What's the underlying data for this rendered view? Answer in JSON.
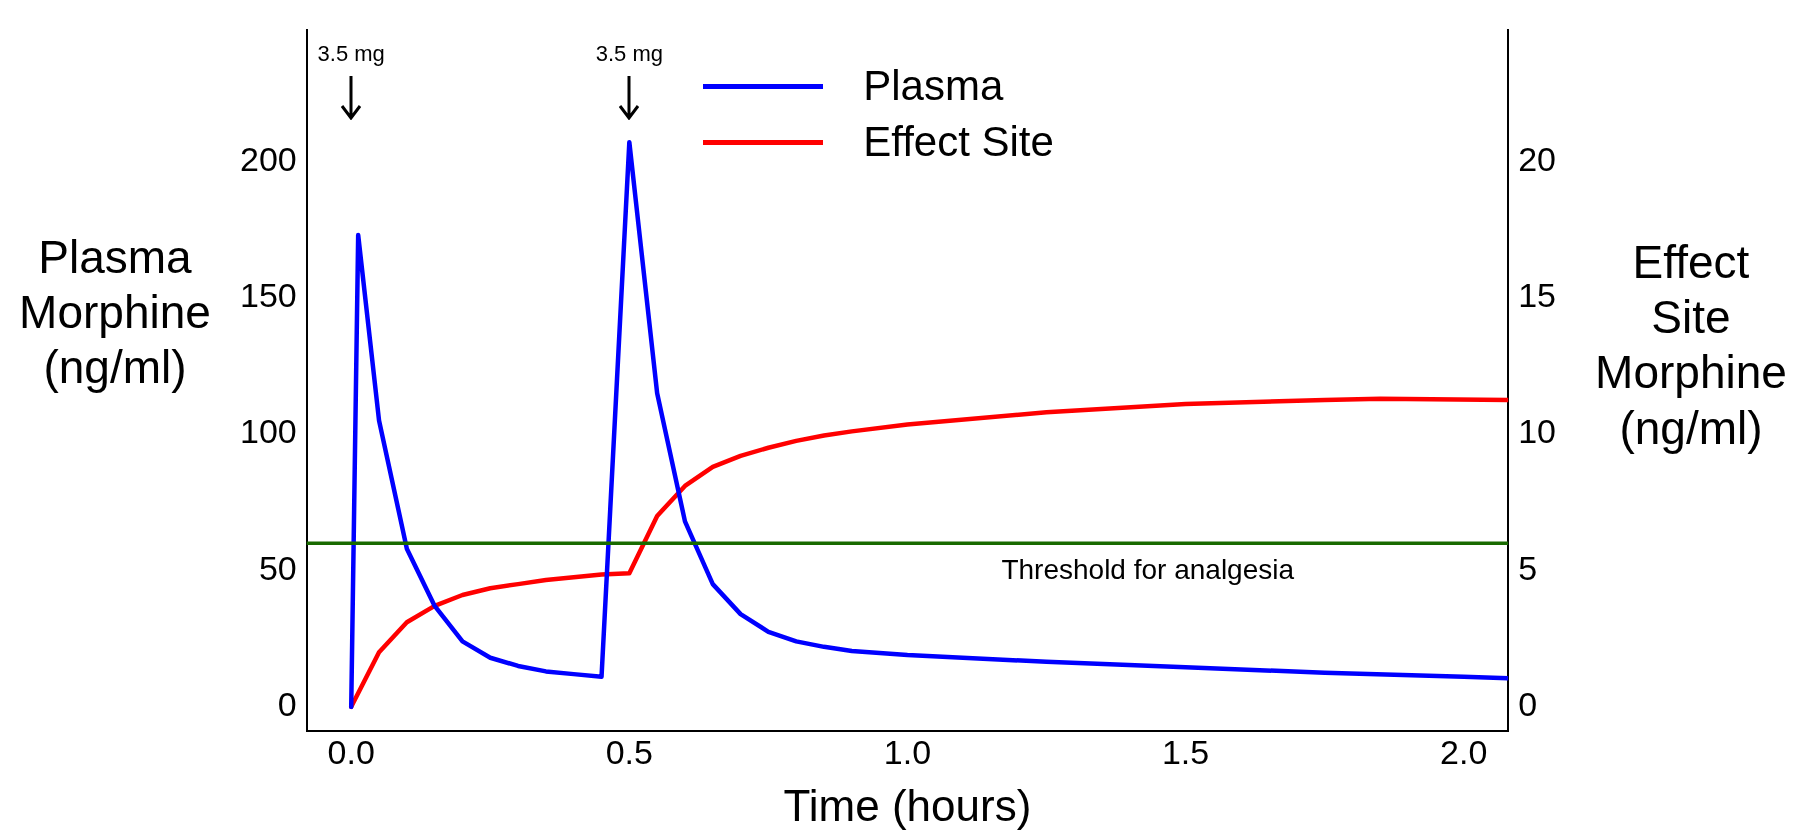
{
  "chart_data": {
    "type": "line",
    "xlabel": "Time (hours)",
    "ylabel": "Plasma Morphine (ng/ml)",
    "y2label": "Effect Site Morphine (ng/ml)",
    "annotations": [
      {
        "text": "3.5 mg",
        "x": 0
      },
      {
        "text": "3.5 mg",
        "x": 0.5
      }
    ],
    "xlim": [
      -0.08,
      2.08
    ],
    "xticks": [
      {
        "value": 0,
        "label": "0.0"
      },
      {
        "value": 0.5,
        "label": "0.5"
      },
      {
        "value": 1,
        "label": "1.0"
      },
      {
        "value": 1.5,
        "label": "1.5"
      },
      {
        "value": 2,
        "label": "2.0"
      }
    ],
    "ylim": [
      -9,
      248
    ],
    "yticks": [
      0,
      50,
      100,
      150,
      200
    ],
    "y2lim": [
      -0.9,
      24.8
    ],
    "y2ticks": [
      0,
      5,
      10,
      15,
      20
    ],
    "legend": "top",
    "marker": "none",
    "line_style": "solid",
    "ref_lines": [
      {
        "axis": "y",
        "value": 60,
        "label": "Threshold for analgesia",
        "color": "#186a00"
      }
    ],
    "series": [
      {
        "name": "Plasma",
        "color": "#0000ff",
        "x": [
          0,
          0.0125,
          0.05,
          0.1,
          0.15,
          0.2,
          0.25,
          0.3,
          0.35,
          0.4,
          0.45,
          0.5,
          0.55,
          0.6,
          0.65,
          0.7,
          0.75,
          0.8,
          0.85,
          0.9,
          1.0,
          1.25,
          1.5,
          1.75,
          2.0,
          2.08
        ],
        "values": [
          0,
          173,
          105,
          58,
          37,
          24,
          18,
          15,
          13,
          12,
          11,
          207,
          115,
          68,
          45,
          34,
          27.5,
          24,
          22,
          20.5,
          19,
          16.5,
          14.5,
          12.5,
          11,
          10.5
        ]
      },
      {
        "name": "Effect Site",
        "color": "#ff0000",
        "axis": "y2",
        "x": [
          0,
          0.05,
          0.1,
          0.15,
          0.2,
          0.25,
          0.3,
          0.35,
          0.4,
          0.45,
          0.5,
          0.55,
          0.6,
          0.65,
          0.7,
          0.75,
          0.8,
          0.85,
          0.9,
          1.0,
          1.25,
          1.5,
          1.75,
          1.85,
          2.08
        ],
        "values": [
          0,
          2.0,
          3.1,
          3.7,
          4.1,
          4.35,
          4.5,
          4.65,
          4.75,
          4.85,
          4.9,
          7.0,
          8.1,
          8.8,
          9.2,
          9.5,
          9.75,
          9.95,
          10.1,
          10.35,
          10.8,
          11.1,
          11.25,
          11.3,
          11.25
        ]
      }
    ]
  }
}
